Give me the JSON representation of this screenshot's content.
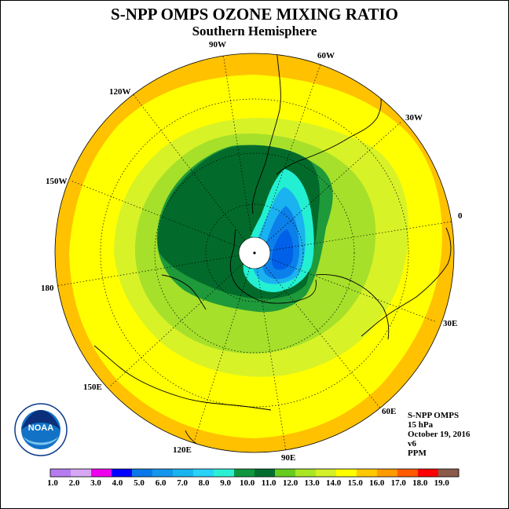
{
  "header": {
    "title": "S-NPP OMPS OZONE MIXING RATIO",
    "subtitle": "Southern Hemisphere"
  },
  "map": {
    "projection": "south-polar-stereographic",
    "longitude_labels": [
      "90W",
      "60W",
      "120W",
      "30W",
      "150W",
      "0",
      "180",
      "30E",
      "150E",
      "60E",
      "120E",
      "90E"
    ],
    "field_levels_ppm": {
      "outer_band": 14.5,
      "mid_band": 13.5,
      "inner_band": 12.5,
      "ring": 11.5,
      "polar_vortex_core": 10.5,
      "ozone_hole_low": 4.5
    }
  },
  "logo": {
    "text": "NOAA"
  },
  "info": {
    "line1": "S-NPP OMPS",
    "line2": "15 hPa",
    "line3": "October 19, 2016",
    "line4": "v6",
    "line5": "PPM"
  },
  "colorbar": {
    "labels": [
      "1.0",
      "2.0",
      "3.0",
      "4.0",
      "5.0",
      "6.0",
      "7.0",
      "8.0",
      "9.0",
      "10.0",
      "11.0",
      "12.0",
      "13.0",
      "14.0",
      "15.0",
      "16.0",
      "17.0",
      "18.0",
      "19.0"
    ],
    "colors": [
      "#b57cf0",
      "#d6a8f4",
      "#ee00ee",
      "#0000ff",
      "#0a78e8",
      "#1496ec",
      "#19b4f0",
      "#28d2f8",
      "#2bf0d6",
      "#0f9640",
      "#026e2e",
      "#66cc1e",
      "#a8e626",
      "#d4f028",
      "#ffff00",
      "#ffc800",
      "#ff9a00",
      "#ff5a00",
      "#ff0000",
      "#8a5a4a"
    ]
  },
  "colors": {
    "band_outer": "#ffc100",
    "band_14": "#ffff00",
    "band_13": "#d8f228",
    "band_12": "#a6e02a",
    "band_ring": "#1f9a3a",
    "vortex": "#026b2b",
    "hole_outer": "#23f0d2",
    "hole_mid": "#1ab2f0",
    "hole_inner": "#0b80ea",
    "hole_core": "#0060e8"
  }
}
